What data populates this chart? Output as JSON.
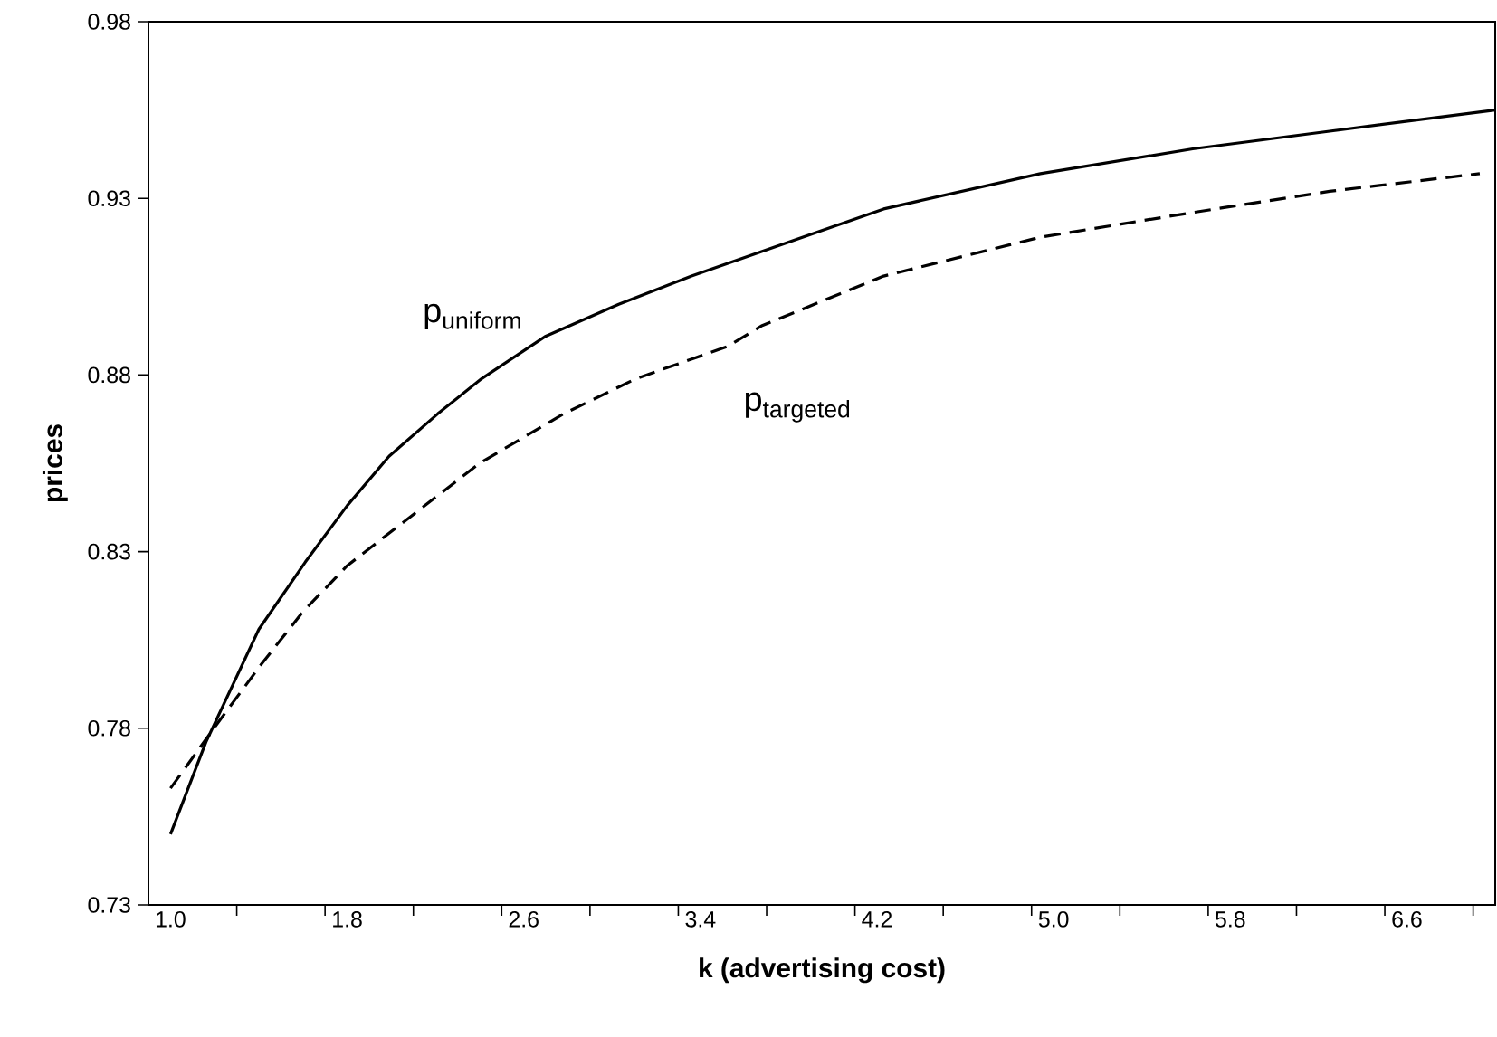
{
  "chart_data": {
    "type": "line",
    "xlabel": "k (advertising cost)",
    "ylabel": "prices",
    "xlim": [
      0.9,
      7.0
    ],
    "ylim": [
      0.73,
      0.98
    ],
    "xticks": [
      {
        "value": 1.0,
        "label": "1.0"
      },
      {
        "value": 1.8,
        "label": "1.8"
      },
      {
        "value": 2.6,
        "label": "2.6"
      },
      {
        "value": 3.4,
        "label": "3.4"
      },
      {
        "value": 4.2,
        "label": "4.2"
      },
      {
        "value": 5.0,
        "label": "5.0"
      },
      {
        "value": 5.8,
        "label": "5.8"
      },
      {
        "value": 6.6,
        "label": "6.6"
      },
      {
        "value": 1.3,
        "label": null
      },
      {
        "value": 1.7,
        "label": null
      },
      {
        "value": 2.1,
        "label": null
      },
      {
        "value": 2.5,
        "label": null
      },
      {
        "value": 2.9,
        "label": null
      },
      {
        "value": 3.3,
        "label": null
      },
      {
        "value": 3.7,
        "label": null
      },
      {
        "value": 4.1,
        "label": null
      },
      {
        "value": 4.5,
        "label": null
      },
      {
        "value": 4.9,
        "label": null
      },
      {
        "value": 5.3,
        "label": null
      },
      {
        "value": 5.7,
        "label": null
      },
      {
        "value": 6.1,
        "label": null
      },
      {
        "value": 6.5,
        "label": null
      },
      {
        "value": 6.9,
        "label": null
      }
    ],
    "yticks": [
      0.73,
      0.78,
      0.83,
      0.88,
      0.93,
      0.98
    ],
    "series": [
      {
        "name": "p$_{uniform}$",
        "color": "#000000",
        "line_style": "solid",
        "x": [
          1.0,
          1.16,
          1.4,
          1.61,
          1.8,
          1.99,
          2.21,
          2.41,
          2.7,
          3.03,
          3.36,
          3.68,
          4.23,
          4.94,
          5.63,
          6.25,
          7.0
        ],
        "values": [
          0.75,
          0.776,
          0.808,
          0.827,
          0.843,
          0.857,
          0.869,
          0.879,
          0.891,
          0.9,
          0.908,
          0.915,
          0.927,
          0.937,
          0.944,
          0.949,
          0.955
        ]
      },
      {
        "name": "p$_{targeted}$",
        "color": "#000000",
        "line_style": "dashed",
        "x": [
          1.0,
          1.22,
          1.41,
          1.6,
          1.8,
          2.11,
          2.4,
          2.78,
          3.11,
          3.52,
          3.68,
          4.23,
          4.94,
          5.63,
          6.25,
          6.93
        ],
        "values": [
          0.763,
          0.782,
          0.798,
          0.813,
          0.826,
          0.841,
          0.855,
          0.869,
          0.879,
          0.888,
          0.894,
          0.908,
          0.919,
          0.926,
          0.932,
          0.937
        ]
      }
    ]
  }
}
